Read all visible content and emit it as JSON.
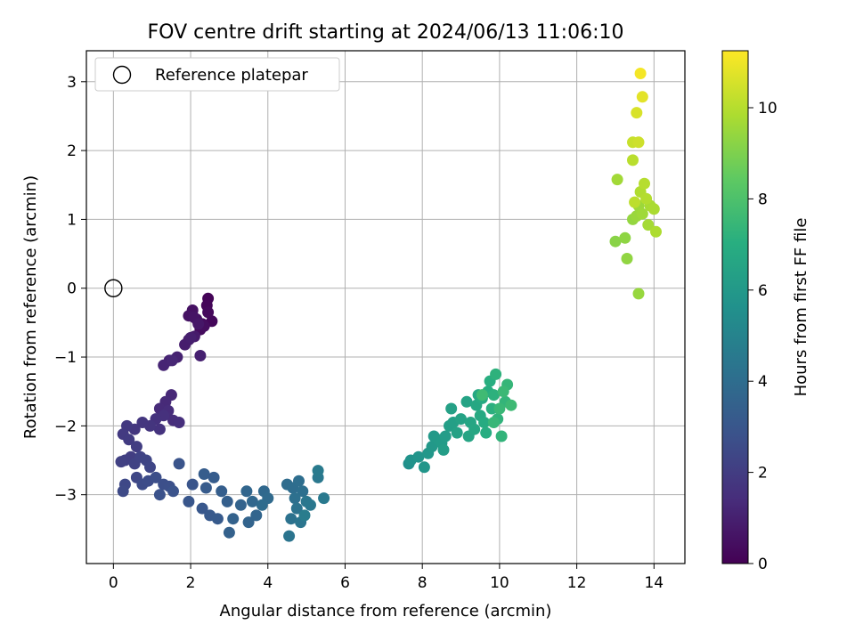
{
  "chart_data": {
    "type": "scatter",
    "title": "FOV centre drift starting at 2024/06/13 11:06:10",
    "xlabel": "Angular distance from reference (arcmin)",
    "ylabel": "Rotation from reference (arcmin)",
    "colorbar_label": "Hours from first FF file",
    "xlim": [
      -0.7,
      14.8
    ],
    "ylim": [
      -4.0,
      3.45
    ],
    "clim": [
      0,
      11.25
    ],
    "colormap": "viridis",
    "grid": true,
    "legend": {
      "position": "top-left",
      "entries": [
        {
          "label": "Reference platepar",
          "marker": "open-circle"
        }
      ]
    },
    "reference_point": {
      "x": 0,
      "y": 0
    },
    "xticks": [
      "0",
      "2",
      "4",
      "6",
      "8",
      "10",
      "12",
      "14"
    ],
    "yticks": [
      "−3",
      "−2",
      "−1",
      "0",
      "1",
      "2",
      "3"
    ],
    "cticks": [
      "0",
      "2",
      "4",
      "6",
      "8",
      "10"
    ],
    "points": [
      [
        2.45,
        -0.15,
        0.1
      ],
      [
        2.42,
        -0.25,
        0.15
      ],
      [
        2.55,
        -0.48,
        0.2
      ],
      [
        2.45,
        -0.35,
        0.25
      ],
      [
        2.3,
        -0.52,
        0.3
      ],
      [
        2.25,
        -0.6,
        0.35
      ],
      [
        2.35,
        -0.55,
        0.4
      ],
      [
        2.15,
        -0.45,
        0.45
      ],
      [
        2.05,
        -0.32,
        0.5
      ],
      [
        1.95,
        -0.4,
        0.55
      ],
      [
        2.08,
        -0.42,
        0.6
      ],
      [
        2.2,
        -0.52,
        0.7
      ],
      [
        2.1,
        -0.7,
        0.8
      ],
      [
        1.95,
        -0.75,
        0.85
      ],
      [
        1.85,
        -0.82,
        0.9
      ],
      [
        2.0,
        -0.72,
        0.95
      ],
      [
        2.25,
        -0.98,
        1.0
      ],
      [
        1.65,
        -1.0,
        1.05
      ],
      [
        1.45,
        -1.05,
        1.1
      ],
      [
        1.3,
        -1.12,
        1.15
      ],
      [
        1.52,
        -1.05,
        1.2
      ],
      [
        1.5,
        -1.55,
        1.25
      ],
      [
        1.35,
        -1.65,
        1.3
      ],
      [
        1.2,
        -1.75,
        1.35
      ],
      [
        1.42,
        -1.78,
        1.4
      ],
      [
        1.55,
        -1.92,
        1.45
      ],
      [
        1.7,
        -1.95,
        1.5
      ],
      [
        1.3,
        -1.85,
        1.55
      ],
      [
        1.1,
        -1.9,
        1.6
      ],
      [
        1.2,
        -2.05,
        1.65
      ],
      [
        0.95,
        -2.0,
        1.7
      ],
      [
        0.75,
        -1.95,
        1.75
      ],
      [
        0.55,
        -2.05,
        1.8
      ],
      [
        0.35,
        -2.0,
        1.85
      ],
      [
        0.25,
        -2.12,
        1.9
      ],
      [
        0.4,
        -2.2,
        1.95
      ],
      [
        0.6,
        -2.3,
        2.0
      ],
      [
        0.45,
        -2.45,
        2.05
      ],
      [
        0.3,
        -2.5,
        2.1
      ],
      [
        0.2,
        -2.52,
        2.15
      ],
      [
        0.55,
        -2.55,
        2.2
      ],
      [
        0.7,
        -2.45,
        2.25
      ],
      [
        0.85,
        -2.5,
        2.3
      ],
      [
        0.95,
        -2.6,
        2.35
      ],
      [
        0.6,
        -2.75,
        2.4
      ],
      [
        0.3,
        -2.85,
        2.45
      ],
      [
        0.25,
        -2.95,
        2.5
      ],
      [
        0.75,
        -2.85,
        2.55
      ],
      [
        0.9,
        -2.8,
        2.6
      ],
      [
        1.1,
        -2.75,
        2.65
      ],
      [
        1.3,
        -2.85,
        2.7
      ],
      [
        1.45,
        -2.88,
        2.75
      ],
      [
        1.2,
        -3.0,
        2.8
      ],
      [
        1.55,
        -2.95,
        2.85
      ],
      [
        1.7,
        -2.55,
        2.9
      ],
      [
        2.05,
        -2.85,
        2.95
      ],
      [
        1.95,
        -3.1,
        3.0
      ],
      [
        2.3,
        -3.2,
        3.05
      ],
      [
        2.5,
        -3.3,
        3.1
      ],
      [
        2.7,
        -3.35,
        3.15
      ],
      [
        2.4,
        -2.9,
        3.2
      ],
      [
        2.6,
        -2.75,
        3.25
      ],
      [
        2.35,
        -2.7,
        3.3
      ],
      [
        2.8,
        -2.95,
        3.35
      ],
      [
        2.95,
        -3.1,
        3.4
      ],
      [
        3.0,
        -3.55,
        3.45
      ],
      [
        3.1,
        -3.35,
        3.5
      ],
      [
        3.3,
        -3.15,
        3.55
      ],
      [
        3.5,
        -3.4,
        3.6
      ],
      [
        3.7,
        -3.3,
        3.65
      ],
      [
        3.45,
        -2.95,
        3.7
      ],
      [
        3.6,
        -3.1,
        3.75
      ],
      [
        3.9,
        -2.95,
        3.8
      ],
      [
        4.0,
        -3.05,
        3.85
      ],
      [
        3.85,
        -3.15,
        3.9
      ],
      [
        4.5,
        -2.85,
        3.95
      ],
      [
        4.65,
        -2.9,
        4.0
      ],
      [
        4.8,
        -2.8,
        4.05
      ],
      [
        4.9,
        -2.95,
        4.1
      ],
      [
        4.7,
        -3.05,
        4.15
      ],
      [
        4.6,
        -3.35,
        4.2
      ],
      [
        4.75,
        -3.2,
        4.25
      ],
      [
        4.55,
        -3.6,
        4.3
      ],
      [
        4.85,
        -3.4,
        4.35
      ],
      [
        5.0,
        -3.1,
        4.4
      ],
      [
        5.1,
        -3.15,
        4.45
      ],
      [
        5.3,
        -2.75,
        4.5
      ],
      [
        5.45,
        -3.05,
        4.55
      ],
      [
        5.3,
        -2.65,
        4.6
      ],
      [
        4.95,
        -3.3,
        4.65
      ],
      [
        7.65,
        -2.55,
        5.6
      ],
      [
        7.7,
        -2.5,
        5.7
      ],
      [
        7.9,
        -2.45,
        5.8
      ],
      [
        8.05,
        -2.6,
        5.85
      ],
      [
        8.15,
        -2.4,
        5.9
      ],
      [
        8.25,
        -2.3,
        5.95
      ],
      [
        8.3,
        -2.15,
        6.0
      ],
      [
        8.4,
        -2.2,
        6.05
      ],
      [
        8.5,
        -2.25,
        6.1
      ],
      [
        8.6,
        -2.15,
        6.15
      ],
      [
        8.55,
        -2.35,
        6.2
      ],
      [
        8.7,
        -2.0,
        6.25
      ],
      [
        8.8,
        -1.95,
        6.3
      ],
      [
        8.75,
        -1.75,
        6.35
      ],
      [
        8.9,
        -2.1,
        6.4
      ],
      [
        9.0,
        -1.9,
        6.45
      ],
      [
        9.15,
        -1.65,
        6.5
      ],
      [
        9.2,
        -2.15,
        6.55
      ],
      [
        9.25,
        -1.95,
        6.6
      ],
      [
        9.35,
        -2.05,
        6.65
      ],
      [
        9.4,
        -1.7,
        6.7
      ],
      [
        9.45,
        -1.55,
        6.75
      ],
      [
        9.5,
        -1.85,
        6.8
      ],
      [
        9.55,
        -1.6,
        6.85
      ],
      [
        9.6,
        -1.95,
        6.9
      ],
      [
        9.65,
        -2.1,
        6.95
      ],
      [
        9.7,
        -1.5,
        7.0
      ],
      [
        9.75,
        -1.35,
        7.05
      ],
      [
        9.8,
        -1.75,
        7.1
      ],
      [
        9.85,
        -1.55,
        7.15
      ],
      [
        9.9,
        -1.25,
        7.2
      ],
      [
        9.95,
        -1.9,
        7.25
      ],
      [
        10.05,
        -2.15,
        7.3
      ],
      [
        10.15,
        -1.65,
        7.35
      ],
      [
        10.2,
        -1.4,
        7.4
      ],
      [
        9.85,
        -1.95,
        7.45
      ],
      [
        10.0,
        -1.75,
        7.5
      ],
      [
        10.1,
        -1.5,
        7.55
      ],
      [
        10.3,
        -1.7,
        7.6
      ],
      [
        9.55,
        -1.55,
        7.65
      ],
      [
        13.0,
        0.68,
        9.2
      ],
      [
        13.25,
        0.73,
        9.3
      ],
      [
        13.3,
        0.43,
        9.35
      ],
      [
        13.45,
        1.0,
        9.4
      ],
      [
        13.6,
        -0.08,
        9.45
      ],
      [
        13.55,
        1.05,
        9.5
      ],
      [
        13.6,
        1.2,
        9.55
      ],
      [
        13.7,
        1.08,
        9.6
      ],
      [
        13.05,
        1.58,
        9.65
      ],
      [
        13.85,
        0.92,
        9.7
      ],
      [
        13.9,
        1.2,
        9.75
      ],
      [
        14.0,
        1.15,
        9.8
      ],
      [
        14.05,
        0.82,
        9.85
      ],
      [
        13.65,
        1.4,
        9.9
      ],
      [
        13.8,
        1.3,
        9.95
      ],
      [
        13.75,
        1.52,
        10.0
      ],
      [
        13.45,
        1.86,
        10.05
      ],
      [
        13.5,
        1.25,
        10.1
      ],
      [
        13.45,
        2.12,
        10.3
      ],
      [
        13.6,
        2.12,
        10.4
      ],
      [
        13.55,
        2.55,
        10.6
      ],
      [
        13.7,
        2.78,
        10.8
      ],
      [
        13.65,
        3.12,
        11.1
      ]
    ]
  }
}
